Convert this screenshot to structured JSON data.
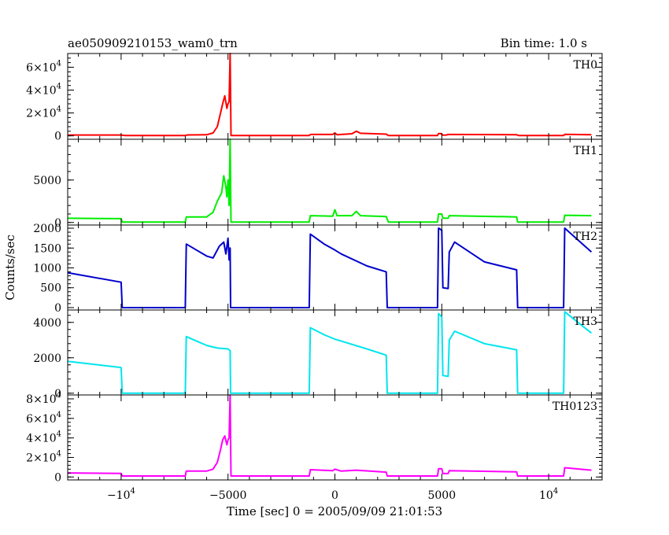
{
  "header": {
    "left_title": "ae050909210153_wam0_trn",
    "right_title": "Bin time: 1.0 s"
  },
  "chart_data": {
    "type": "line",
    "title": "ae050909210153_wam0_trn",
    "subtitle": "Bin time: 1.0 s",
    "xlabel": "Time [sec] 0 = 2005/09/09 21:01:53",
    "ylabel": "Counts/sec",
    "xlim": [
      -12500,
      12500
    ],
    "x_ticks": [
      {
        "value": -10000,
        "label": "−10",
        "exp": "4"
      },
      {
        "value": -5000,
        "label": "−5000",
        "exp": ""
      },
      {
        "value": 0,
        "label": "0",
        "exp": ""
      },
      {
        "value": 5000,
        "label": "5000",
        "exp": ""
      },
      {
        "value": 10000,
        "label": "10",
        "exp": "4"
      }
    ],
    "panels": [
      {
        "name": "TH0",
        "color": "#ff0000",
        "ylim": [
          -3000,
          72000
        ],
        "y_ticks": [
          {
            "value": 0,
            "label": "0",
            "exp": ""
          },
          {
            "value": 20000,
            "label": "2×10",
            "exp": "4"
          },
          {
            "value": 40000,
            "label": "4×10",
            "exp": "4"
          },
          {
            "value": 60000,
            "label": "6×10",
            "exp": "4"
          }
        ],
        "points": [
          [
            -12500,
            700
          ],
          [
            -10000,
            700
          ],
          [
            -9800,
            200
          ],
          [
            -7000,
            200
          ],
          [
            -6900,
            800
          ],
          [
            -6000,
            900
          ],
          [
            -5700,
            2500
          ],
          [
            -5500,
            8000
          ],
          [
            -5350,
            20000
          ],
          [
            -5250,
            28000
          ],
          [
            -5150,
            35000
          ],
          [
            -5050,
            24000
          ],
          [
            -5000,
            28000
          ],
          [
            -4950,
            30000
          ],
          [
            -4900,
            72000
          ],
          [
            -4860,
            200
          ],
          [
            -1200,
            200
          ],
          [
            -1150,
            1200
          ],
          [
            -100,
            1200
          ],
          [
            0,
            2500
          ],
          [
            100,
            1000
          ],
          [
            800,
            1800
          ],
          [
            1000,
            4000
          ],
          [
            1200,
            2200
          ],
          [
            2400,
            1500
          ],
          [
            2500,
            200
          ],
          [
            4800,
            200
          ],
          [
            4850,
            2000
          ],
          [
            4950,
            2000
          ],
          [
            5050,
            600
          ],
          [
            5200,
            700
          ],
          [
            5300,
            1200
          ],
          [
            8500,
            1000
          ],
          [
            8600,
            200
          ],
          [
            10700,
            200
          ],
          [
            10750,
            1300
          ],
          [
            12000,
            1000
          ]
        ]
      },
      {
        "name": "TH1",
        "color": "#00ee00",
        "ylim": [
          -300,
          9800
        ],
        "y_ticks": [
          {
            "value": 0,
            "label": "0",
            "exp": ""
          },
          {
            "value": 5000,
            "label": "5000",
            "exp": ""
          }
        ],
        "points": [
          [
            -12500,
            500
          ],
          [
            -10000,
            450
          ],
          [
            -9950,
            50
          ],
          [
            -7000,
            50
          ],
          [
            -6950,
            650
          ],
          [
            -6000,
            650
          ],
          [
            -5700,
            1200
          ],
          [
            -5500,
            2500
          ],
          [
            -5300,
            3500
          ],
          [
            -5200,
            5500
          ],
          [
            -5100,
            4200
          ],
          [
            -5050,
            3000
          ],
          [
            -5000,
            5000
          ],
          [
            -4950,
            2000
          ],
          [
            -4900,
            9800
          ],
          [
            -4860,
            50
          ],
          [
            -1200,
            50
          ],
          [
            -1150,
            800
          ],
          [
            -100,
            750
          ],
          [
            0,
            1500
          ],
          [
            100,
            800
          ],
          [
            800,
            800
          ],
          [
            1000,
            1300
          ],
          [
            1200,
            800
          ],
          [
            2400,
            700
          ],
          [
            2500,
            50
          ],
          [
            4800,
            50
          ],
          [
            4850,
            1000
          ],
          [
            5000,
            1000
          ],
          [
            5050,
            500
          ],
          [
            5300,
            500
          ],
          [
            5350,
            800
          ],
          [
            8500,
            650
          ],
          [
            8550,
            50
          ],
          [
            10700,
            50
          ],
          [
            10750,
            850
          ],
          [
            12000,
            800
          ]
        ]
      },
      {
        "name": "TH2",
        "color": "#0000cc",
        "ylim": [
          -60,
          2080
        ],
        "y_ticks": [
          {
            "value": 0,
            "label": "0",
            "exp": ""
          },
          {
            "value": 500,
            "label": "500",
            "exp": ""
          },
          {
            "value": 1000,
            "label": "1000",
            "exp": ""
          },
          {
            "value": 1500,
            "label": "1500",
            "exp": ""
          },
          {
            "value": 2000,
            "label": "2000",
            "exp": ""
          }
        ],
        "points": [
          [
            -12500,
            880
          ],
          [
            -10000,
            640
          ],
          [
            -9950,
            0
          ],
          [
            -7000,
            0
          ],
          [
            -6950,
            1600
          ],
          [
            -6000,
            1300
          ],
          [
            -5700,
            1250
          ],
          [
            -5400,
            1550
          ],
          [
            -5200,
            1650
          ],
          [
            -5100,
            1350
          ],
          [
            -5000,
            1750
          ],
          [
            -4950,
            1200
          ],
          [
            -4900,
            1500
          ],
          [
            -4880,
            0
          ],
          [
            -1200,
            0
          ],
          [
            -1150,
            1850
          ],
          [
            -500,
            1600
          ],
          [
            0,
            1450
          ],
          [
            300,
            1350
          ],
          [
            1500,
            1050
          ],
          [
            2400,
            900
          ],
          [
            2450,
            0
          ],
          [
            4800,
            0
          ],
          [
            4850,
            2000
          ],
          [
            5000,
            1950
          ],
          [
            5050,
            500
          ],
          [
            5300,
            480
          ],
          [
            5350,
            1400
          ],
          [
            5600,
            1650
          ],
          [
            7000,
            1150
          ],
          [
            8500,
            950
          ],
          [
            8550,
            0
          ],
          [
            10700,
            0
          ],
          [
            10750,
            2000
          ],
          [
            12000,
            1400
          ]
        ]
      },
      {
        "name": "TH3",
        "color": "#00e5ee",
        "ylim": [
          -100,
          4700
        ],
        "y_ticks": [
          {
            "value": 0,
            "label": "0",
            "exp": ""
          },
          {
            "value": 2000,
            "label": "2000",
            "exp": ""
          },
          {
            "value": 4000,
            "label": "4000",
            "exp": ""
          }
        ],
        "points": [
          [
            -12500,
            1800
          ],
          [
            -10000,
            1450
          ],
          [
            -9950,
            0
          ],
          [
            -7000,
            0
          ],
          [
            -6950,
            3200
          ],
          [
            -6000,
            2700
          ],
          [
            -5500,
            2550
          ],
          [
            -5000,
            2500
          ],
          [
            -4900,
            2400
          ],
          [
            -4880,
            0
          ],
          [
            -1200,
            0
          ],
          [
            -1150,
            3700
          ],
          [
            -500,
            3300
          ],
          [
            0,
            3050
          ],
          [
            1500,
            2500
          ],
          [
            2400,
            2150
          ],
          [
            2450,
            0
          ],
          [
            4800,
            0
          ],
          [
            4850,
            4500
          ],
          [
            5000,
            4300
          ],
          [
            5050,
            1000
          ],
          [
            5300,
            950
          ],
          [
            5350,
            3000
          ],
          [
            5600,
            3500
          ],
          [
            7000,
            2800
          ],
          [
            8500,
            2450
          ],
          [
            8550,
            0
          ],
          [
            10700,
            0
          ],
          [
            10750,
            4600
          ],
          [
            12000,
            3400
          ]
        ]
      },
      {
        "name": "TH0123",
        "color": "#ff00ff",
        "ylim": [
          -3000,
          84000
        ],
        "y_ticks": [
          {
            "value": 0,
            "label": "0",
            "exp": ""
          },
          {
            "value": 20000,
            "label": "2×10",
            "exp": "4"
          },
          {
            "value": 40000,
            "label": "4×10",
            "exp": "4"
          },
          {
            "value": 60000,
            "label": "6×10",
            "exp": "4"
          },
          {
            "value": 80000,
            "label": "8×10",
            "exp": "4"
          }
        ],
        "points": [
          [
            -12500,
            4200
          ],
          [
            -10000,
            3600
          ],
          [
            -9950,
            1000
          ],
          [
            -7000,
            1000
          ],
          [
            -6950,
            6000
          ],
          [
            -6000,
            6000
          ],
          [
            -5700,
            8000
          ],
          [
            -5500,
            15000
          ],
          [
            -5350,
            28000
          ],
          [
            -5250,
            38000
          ],
          [
            -5150,
            42000
          ],
          [
            -5050,
            33000
          ],
          [
            -5000,
            38000
          ],
          [
            -4950,
            40000
          ],
          [
            -4900,
            84000
          ],
          [
            -4860,
            1000
          ],
          [
            -1200,
            1000
          ],
          [
            -1150,
            7500
          ],
          [
            -100,
            6500
          ],
          [
            0,
            8000
          ],
          [
            300,
            6000
          ],
          [
            1000,
            7000
          ],
          [
            2400,
            5000
          ],
          [
            2450,
            1000
          ],
          [
            4800,
            1000
          ],
          [
            4850,
            8500
          ],
          [
            5000,
            8500
          ],
          [
            5050,
            3500
          ],
          [
            5300,
            3500
          ],
          [
            5350,
            6500
          ],
          [
            8500,
            5200
          ],
          [
            8550,
            1000
          ],
          [
            10700,
            1000
          ],
          [
            10750,
            9500
          ],
          [
            12000,
            7000
          ]
        ]
      }
    ]
  }
}
